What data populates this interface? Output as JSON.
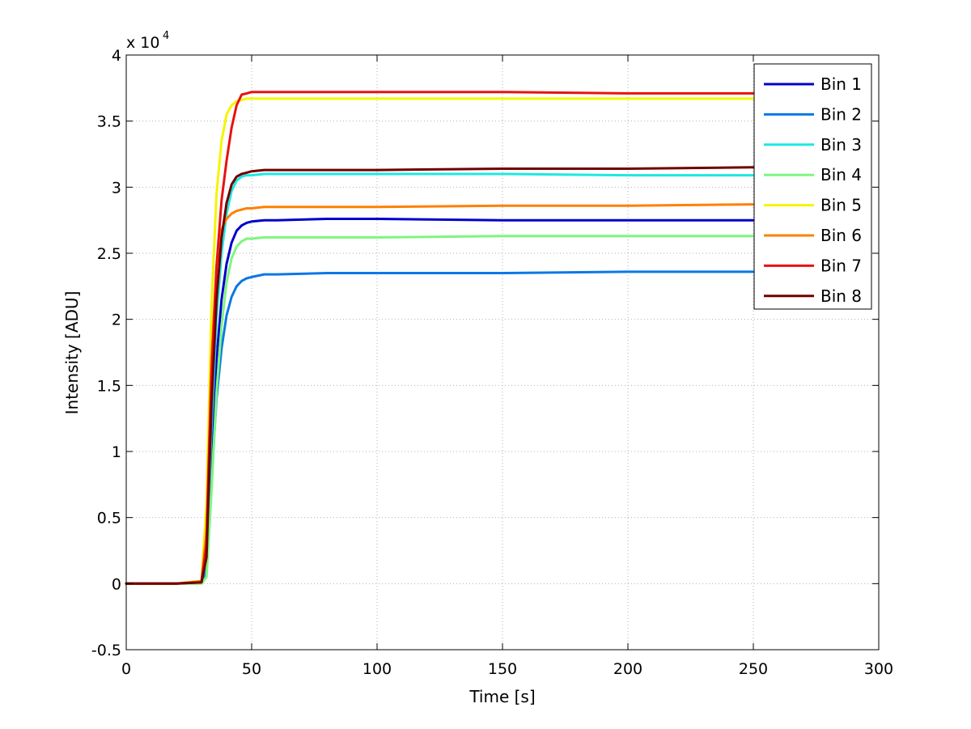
{
  "chart_data": {
    "type": "line",
    "title": "",
    "xlabel": "Time [s]",
    "ylabel": "Intensity [ADU]",
    "y_exponent_label": "x 10",
    "y_exponent_power": "4",
    "xlim": [
      0,
      300
    ],
    "ylim": [
      -0.5,
      4
    ],
    "x_ticks": [
      0,
      50,
      100,
      150,
      200,
      250,
      300
    ],
    "x_tick_labels": [
      "0",
      "50",
      "100",
      "150",
      "200",
      "250",
      "300"
    ],
    "y_ticks": [
      -0.5,
      0,
      0.5,
      1,
      1.5,
      2,
      2.5,
      3,
      3.5,
      4
    ],
    "y_tick_labels": [
      "-0.5",
      "0",
      "0.5",
      "1",
      "1.5",
      "2",
      "2.5",
      "3",
      "3.5",
      "4"
    ],
    "grid": true,
    "legend_position": "top-right",
    "x": [
      0,
      10,
      20,
      30,
      32,
      34,
      36,
      38,
      40,
      42,
      44,
      46,
      48,
      50,
      55,
      60,
      80,
      100,
      150,
      200,
      250,
      270
    ],
    "series": [
      {
        "name": "Bin 1",
        "color": "#0000cc",
        "values": [
          0,
          0,
          0,
          0.01,
          0.15,
          1.0,
          1.7,
          2.15,
          2.42,
          2.58,
          2.67,
          2.71,
          2.73,
          2.74,
          2.75,
          2.75,
          2.76,
          2.76,
          2.75,
          2.75,
          2.75,
          2.75
        ]
      },
      {
        "name": "Bin 2",
        "color": "#0a78e6",
        "values": [
          0,
          0,
          0,
          0.01,
          0.1,
          0.8,
          1.4,
          1.78,
          2.03,
          2.17,
          2.25,
          2.29,
          2.31,
          2.32,
          2.34,
          2.34,
          2.35,
          2.35,
          2.35,
          2.36,
          2.36,
          2.36
        ]
      },
      {
        "name": "Bin 3",
        "color": "#1ee8e0",
        "values": [
          0,
          0,
          0,
          0.01,
          0.2,
          1.2,
          2.0,
          2.5,
          2.8,
          2.97,
          3.05,
          3.08,
          3.09,
          3.09,
          3.1,
          3.1,
          3.1,
          3.1,
          3.1,
          3.09,
          3.09,
          3.09
        ]
      },
      {
        "name": "Bin 4",
        "color": "#7ef57e",
        "values": [
          0,
          0,
          0,
          0,
          0.05,
          0.7,
          1.45,
          1.95,
          2.28,
          2.46,
          2.55,
          2.59,
          2.61,
          2.61,
          2.62,
          2.62,
          2.62,
          2.62,
          2.63,
          2.63,
          2.63,
          2.64
        ]
      },
      {
        "name": "Bin 5",
        "color": "#f5f500",
        "values": [
          0,
          0,
          0,
          0.02,
          0.6,
          2.1,
          2.95,
          3.35,
          3.55,
          3.62,
          3.65,
          3.66,
          3.67,
          3.67,
          3.67,
          3.67,
          3.67,
          3.67,
          3.67,
          3.67,
          3.67,
          3.67
        ]
      },
      {
        "name": "Bin 6",
        "color": "#ff8000",
        "values": [
          0,
          0,
          0,
          0.02,
          0.4,
          1.7,
          2.4,
          2.68,
          2.76,
          2.8,
          2.82,
          2.83,
          2.84,
          2.84,
          2.85,
          2.85,
          2.85,
          2.85,
          2.86,
          2.86,
          2.87,
          2.87
        ]
      },
      {
        "name": "Bin 7",
        "color": "#ea1010",
        "values": [
          0,
          0,
          0,
          0.01,
          0.3,
          1.6,
          2.4,
          2.9,
          3.2,
          3.45,
          3.62,
          3.7,
          3.71,
          3.72,
          3.72,
          3.72,
          3.72,
          3.72,
          3.72,
          3.71,
          3.71,
          3.7
        ]
      },
      {
        "name": "Bin 8",
        "color": "#700000",
        "values": [
          0,
          0,
          0,
          0.01,
          0.2,
          1.35,
          2.15,
          2.62,
          2.88,
          3.02,
          3.08,
          3.1,
          3.11,
          3.12,
          3.13,
          3.13,
          3.13,
          3.13,
          3.14,
          3.14,
          3.15,
          3.15
        ]
      }
    ]
  }
}
